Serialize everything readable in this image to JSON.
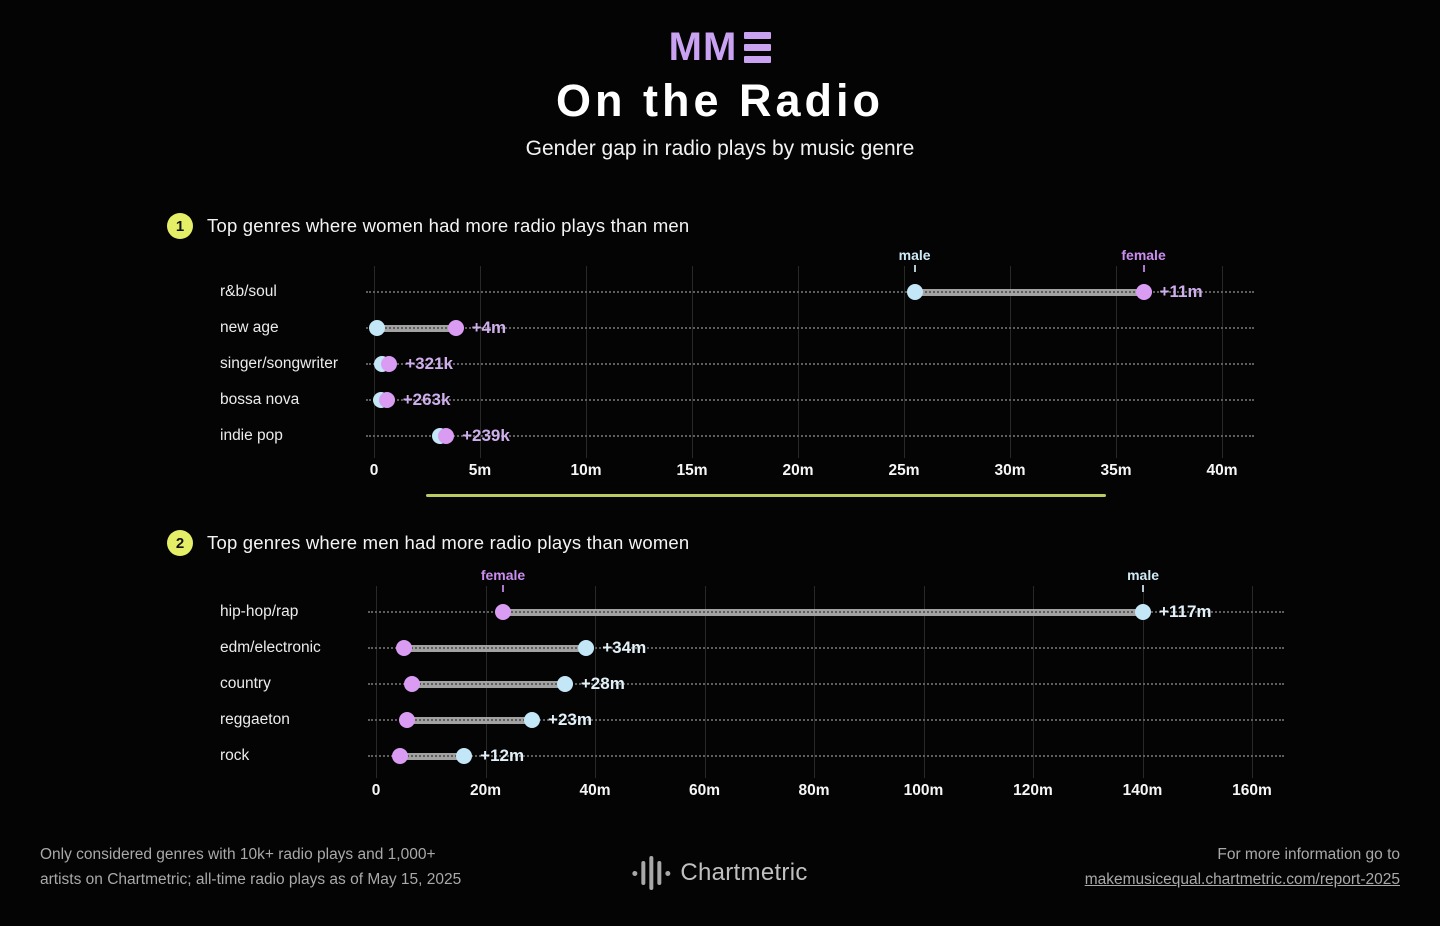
{
  "header": {
    "logo_text": "MM",
    "title": "On the Radio",
    "subtitle": "Gender gap in radio plays by music genre"
  },
  "colors": {
    "accent_purple": "#c9a2f2",
    "badge_yellow": "#e4ef67",
    "divider_yellow": "#b9cb61",
    "male_dot": "#c4e7f7",
    "female_dot": "#da9cf3",
    "male_label": "#cfeaf7",
    "female_label": "#cb8df0",
    "connector_gray": "#a2a2a2",
    "women_value_text": "#cfaeec",
    "men_value_text": "#e2f0f8"
  },
  "chart_data": [
    {
      "type": "dumbbell",
      "section_number": "1",
      "title": "Top genres where women had more radio plays than men",
      "units": "radio plays (millions)",
      "xlim": [
        0,
        40
      ],
      "xticks": [
        "0",
        "5m",
        "10m",
        "15m",
        "20m",
        "25m",
        "30m",
        "35m",
        "40m"
      ],
      "legend": {
        "male": "male",
        "female": "female"
      },
      "annotated_row": 0,
      "categories": [
        "r&b/soul",
        "new age",
        "singer/songwriter",
        "bossa nova",
        "indie pop"
      ],
      "series": [
        {
          "name": "male",
          "values": [
            25.5,
            0.15,
            0.4,
            0.33,
            3.1
          ]
        },
        {
          "name": "female",
          "values": [
            36.3,
            3.85,
            0.72,
            0.6,
            3.4
          ]
        }
      ],
      "diff_labels": [
        "+11m",
        "+4m",
        "+321k",
        "+263k",
        "+239k"
      ],
      "grid": true,
      "legend_position": "above-first-row"
    },
    {
      "type": "dumbbell",
      "section_number": "2",
      "title": "Top genres where men had more radio plays than women",
      "units": "radio plays (millions)",
      "xlim": [
        0,
        160
      ],
      "xticks": [
        "0",
        "20m",
        "40m",
        "60m",
        "80m",
        "100m",
        "120m",
        "140m",
        "160m"
      ],
      "legend": {
        "male": "male",
        "female": "female"
      },
      "annotated_row": 0,
      "categories": [
        "hip-hop/rap",
        "edm/electronic",
        "country",
        "reggaeton",
        "rock"
      ],
      "series": [
        {
          "name": "male",
          "values": [
            140.1,
            38.4,
            34.5,
            28.5,
            16.1
          ]
        },
        {
          "name": "female",
          "values": [
            23.2,
            5.1,
            6.6,
            5.7,
            4.4
          ]
        }
      ],
      "diff_labels": [
        "+117m",
        "+34m",
        "+28m",
        "+23m",
        "+12m"
      ],
      "grid": true,
      "legend_position": "above-first-row"
    }
  ],
  "footer": {
    "note_line1": "Only considered genres with 10k+ radio plays and 1,000+",
    "note_line2": "artists on Chartmetric; all-time radio plays as of May 15, 2025",
    "brand": "Chartmetric",
    "info_text": "For more information go to",
    "info_link": "makemusicequal.chartmetric.com/report-2025"
  }
}
